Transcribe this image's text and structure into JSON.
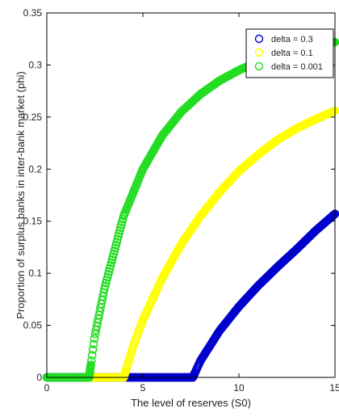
{
  "chart_data": {
    "type": "scatter",
    "title": "",
    "xlabel": "The level of reserves (S0)",
    "ylabel": "Proportion of surplus banks in inter-bank market (phi)",
    "xlim": [
      0,
      15
    ],
    "ylim": [
      0,
      0.35
    ],
    "x_ticks": [
      "0",
      "5",
      "10",
      "15"
    ],
    "y_ticks": [
      "0",
      "0.05",
      "0.1",
      "0.15",
      "0.2",
      "0.25",
      "0.3",
      "0.35"
    ],
    "grid": false,
    "legend_position": "top-right",
    "marker": "circle",
    "series": [
      {
        "name": "delta = 0.3",
        "color": "#0000cc",
        "x": [
          0,
          7.6,
          8,
          9,
          10,
          11,
          12,
          13,
          14,
          15
        ],
        "y": [
          0,
          0,
          0.016,
          0.045,
          0.068,
          0.088,
          0.106,
          0.123,
          0.141,
          0.157
        ]
      },
      {
        "name": "delta = 0.1",
        "color": "#ffff00",
        "x": [
          2.2,
          4.0,
          4.5,
          5,
          6,
          7,
          8,
          9,
          10,
          11,
          12,
          13,
          14,
          15
        ],
        "y": [
          0,
          0,
          0.03,
          0.055,
          0.095,
          0.128,
          0.155,
          0.178,
          0.198,
          0.214,
          0.228,
          0.239,
          0.248,
          0.256
        ]
      },
      {
        "name": "delta = 0.001",
        "color": "#22dd22",
        "x": [
          0,
          2.2,
          2.5,
          3,
          4,
          5,
          6,
          7,
          8,
          9,
          10,
          11,
          12,
          13,
          14,
          15
        ],
        "y": [
          0,
          0,
          0.04,
          0.085,
          0.155,
          0.2,
          0.232,
          0.255,
          0.272,
          0.285,
          0.295,
          0.303,
          0.309,
          0.314,
          0.318,
          0.322
        ]
      }
    ]
  }
}
